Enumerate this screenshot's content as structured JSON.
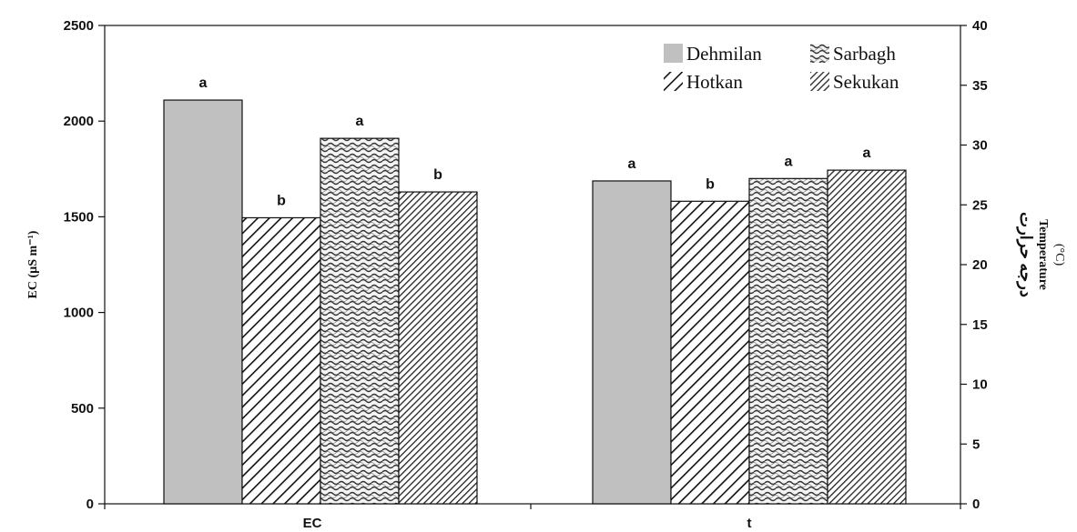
{
  "chart_data": {
    "type": "bar",
    "categories": [
      "EC",
      "t"
    ],
    "series": [
      {
        "name": "Dehmilan",
        "pattern": "solid",
        "values": [
          2110,
          27.0
        ],
        "labels": [
          "a",
          "a"
        ]
      },
      {
        "name": "Hotkan",
        "pattern": "diagonal",
        "values": [
          1495,
          25.3
        ],
        "labels": [
          "b",
          "b"
        ]
      },
      {
        "name": "Sarbagh",
        "pattern": "wave",
        "values": [
          1910,
          27.2
        ],
        "labels": [
          "a",
          "a"
        ]
      },
      {
        "name": "Sekukan",
        "pattern": "dense-diagonal",
        "values": [
          1630,
          27.9
        ],
        "labels": [
          "b",
          "a"
        ]
      }
    ],
    "ylabel_left": "EC (µS m⁻¹)",
    "ylabel_right_fa": "درجه حرارت",
    "ylabel_right": "Temperature",
    "ylabel_right_unit": "(°C)",
    "ylim_left": [
      0,
      2500
    ],
    "ylim_right": [
      0,
      40
    ],
    "yticks_left": [
      "0",
      "500",
      "1000",
      "1500",
      "2000",
      "2500"
    ],
    "yticks_right": [
      "0",
      "5",
      "10",
      "15",
      "20",
      "25",
      "30",
      "35",
      "40"
    ],
    "category_axis": [
      "left",
      "right"
    ],
    "legend_position": "top-right",
    "colors": {
      "solid": "#c0c0c0",
      "axis": "#111111"
    }
  }
}
